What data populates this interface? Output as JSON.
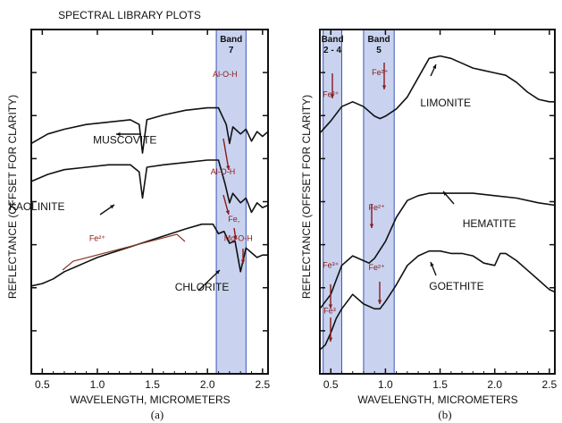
{
  "chart_data": [
    {
      "type": "line",
      "panel_label": "(a)",
      "title": "SPECTRAL LIBRARY PLOTS",
      "xlabel": "WAVELENGTH, MICROMETERS",
      "ylabel": "REFLECTANCE (OFFSET FOR CLARITY)",
      "xlim": [
        0.4,
        2.55
      ],
      "x_ticks": [
        "0.5",
        "1.0",
        "1.5",
        "2.0",
        "2.5"
      ],
      "band_shading": [
        {
          "label_line1": "Band",
          "label_line2": "7",
          "range": [
            2.08,
            2.35
          ]
        }
      ],
      "series": [
        {
          "name": "MUSCOVITE",
          "x": [
            0.4,
            0.55,
            0.7,
            0.9,
            1.1,
            1.3,
            1.38,
            1.41,
            1.45,
            1.6,
            1.8,
            2.0,
            2.1,
            2.17,
            2.2,
            2.23,
            2.3,
            2.35,
            2.4,
            2.45,
            2.5,
            2.55
          ],
          "y": [
            0.42,
            0.46,
            0.48,
            0.5,
            0.51,
            0.52,
            0.5,
            0.38,
            0.52,
            0.54,
            0.56,
            0.57,
            0.57,
            0.5,
            0.42,
            0.49,
            0.46,
            0.48,
            0.43,
            0.47,
            0.45,
            0.47
          ]
        },
        {
          "name": "KAOLINITE",
          "x": [
            0.4,
            0.55,
            0.7,
            0.9,
            1.1,
            1.3,
            1.38,
            1.41,
            1.45,
            1.6,
            1.8,
            2.0,
            2.1,
            2.16,
            2.2,
            2.23,
            2.3,
            2.35,
            2.4,
            2.45,
            2.5,
            2.55
          ],
          "y": [
            0.26,
            0.29,
            0.31,
            0.32,
            0.33,
            0.33,
            0.3,
            0.19,
            0.32,
            0.33,
            0.34,
            0.35,
            0.35,
            0.25,
            0.17,
            0.21,
            0.17,
            0.19,
            0.13,
            0.17,
            0.15,
            0.16
          ]
        },
        {
          "name": "CHLORITE",
          "x": [
            0.4,
            0.5,
            0.6,
            0.7,
            0.8,
            0.9,
            1.0,
            1.2,
            1.4,
            1.6,
            1.8,
            1.95,
            2.05,
            2.1,
            2.15,
            2.2,
            2.25,
            2.3,
            2.35,
            2.4,
            2.45,
            2.5,
            2.55
          ],
          "y": [
            -0.18,
            -0.17,
            -0.15,
            -0.12,
            -0.1,
            -0.08,
            -0.06,
            -0.03,
            0.0,
            0.03,
            0.06,
            0.08,
            0.08,
            0.04,
            0.05,
            0.0,
            0.01,
            -0.12,
            -0.02,
            -0.04,
            -0.06,
            -0.05,
            -0.05
          ]
        }
      ],
      "annotations": [
        {
          "text": "MUSCOVITE",
          "x": 1.25,
          "y": 0.42
        },
        {
          "text": "KAOLINITE",
          "x": 0.45,
          "y": 0.14
        },
        {
          "text": "CHLORITE",
          "x": 1.95,
          "y": -0.2
        },
        {
          "text": "Al-O-H",
          "color": "#8b1a1a",
          "x": 2.16,
          "y": 0.7
        },
        {
          "text": "Al-O-H",
          "color": "#8b1a1a",
          "x": 2.14,
          "y": 0.29
        },
        {
          "text": "Fe,",
          "color": "#8b1a1a",
          "x": 2.24,
          "y": 0.09
        },
        {
          "text": "Mg-O-H",
          "color": "#8b1a1a",
          "x": 2.28,
          "y": 0.01
        },
        {
          "text": "Fe²⁺",
          "color": "#8b1a1a",
          "x": 1.0,
          "y": 0.01
        }
      ]
    },
    {
      "type": "line",
      "panel_label": "(b)",
      "xlabel": "WAVELENGTH, MICROMETERS",
      "ylabel": "REFLECTANCE (OFFSET FOR CLARITY)",
      "xlim": [
        0.4,
        2.55
      ],
      "x_ticks": [
        "0.5",
        "1.0",
        "1.5",
        "2.0",
        "2.5"
      ],
      "band_shading": [
        {
          "label_line1": "Band",
          "label_line2": "2 - 4",
          "range": [
            0.43,
            0.6
          ]
        },
        {
          "label_line1": "Band",
          "label_line2": "5",
          "range": [
            0.8,
            1.08
          ]
        }
      ],
      "series": [
        {
          "name": "LIMONITE",
          "x": [
            0.4,
            0.5,
            0.6,
            0.7,
            0.8,
            0.9,
            0.95,
            1.0,
            1.1,
            1.2,
            1.3,
            1.4,
            1.5,
            1.6,
            1.7,
            1.8,
            1.9,
            2.0,
            2.1,
            2.2,
            2.3,
            2.4,
            2.5,
            2.55
          ],
          "y": [
            0.55,
            0.6,
            0.66,
            0.68,
            0.66,
            0.62,
            0.61,
            0.62,
            0.65,
            0.7,
            0.78,
            0.86,
            0.87,
            0.86,
            0.84,
            0.82,
            0.81,
            0.8,
            0.79,
            0.76,
            0.72,
            0.69,
            0.68,
            0.68
          ]
        },
        {
          "name": "HEMATITE",
          "x": [
            0.4,
            0.5,
            0.55,
            0.6,
            0.7,
            0.8,
            0.85,
            0.9,
            1.0,
            1.1,
            1.2,
            1.3,
            1.4,
            1.5,
            1.6,
            1.8,
            2.0,
            2.2,
            2.4,
            2.55
          ],
          "y": [
            -0.18,
            -0.12,
            -0.06,
            0.0,
            0.04,
            0.02,
            0.01,
            0.03,
            0.1,
            0.2,
            0.27,
            0.29,
            0.3,
            0.3,
            0.3,
            0.3,
            0.29,
            0.28,
            0.26,
            0.25
          ]
        },
        {
          "name": "GOETHITE",
          "x": [
            0.4,
            0.45,
            0.5,
            0.55,
            0.6,
            0.7,
            0.8,
            0.9,
            0.95,
            1.0,
            1.1,
            1.2,
            1.3,
            1.4,
            1.5,
            1.6,
            1.7,
            1.8,
            1.9,
            2.0,
            2.05,
            2.1,
            2.2,
            2.3,
            2.4,
            2.5,
            2.55
          ],
          "y": [
            -0.35,
            -0.33,
            -0.28,
            -0.22,
            -0.18,
            -0.12,
            -0.16,
            -0.18,
            -0.18,
            -0.15,
            -0.08,
            0.0,
            0.04,
            0.06,
            0.06,
            0.05,
            0.05,
            0.04,
            0.01,
            0.0,
            0.05,
            0.05,
            0.02,
            -0.02,
            -0.06,
            -0.1,
            -0.11
          ]
        }
      ],
      "annotations": [
        {
          "text": "LIMONITE",
          "x": 1.55,
          "y": 0.66
        },
        {
          "text": "HEMATITE",
          "x": 1.95,
          "y": 0.16
        },
        {
          "text": "GOETHITE",
          "x": 1.65,
          "y": -0.1
        },
        {
          "text": "Fe³⁺",
          "color": "#8b1a1a",
          "x": 0.5,
          "y": 0.7
        },
        {
          "text": "Fe²⁺",
          "color": "#8b1a1a",
          "x": 0.95,
          "y": 0.79
        },
        {
          "text": "Fe²⁺",
          "color": "#8b1a1a",
          "x": 0.92,
          "y": 0.23
        },
        {
          "text": "Fe²⁺",
          "color": "#8b1a1a",
          "x": 0.92,
          "y": -0.02
        },
        {
          "text": "Fe³⁺",
          "color": "#8b1a1a",
          "x": 0.5,
          "y": -0.01
        },
        {
          "text": "Fe³",
          "color": "#8b1a1a",
          "x": 0.49,
          "y": -0.2
        }
      ]
    }
  ]
}
